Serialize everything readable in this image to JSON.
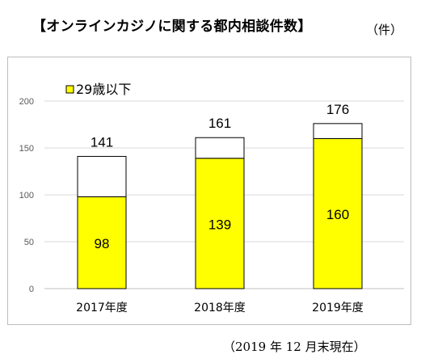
{
  "header": {
    "title": "【オンラインカジノに関する都内相談件数】",
    "unit": "（件）"
  },
  "footnote": "（2019 年 12 月末現在）",
  "colors": {
    "under29": "#ffff00",
    "other": "#ffffff",
    "grid": "#d9d9d9",
    "stroke": "#000000"
  },
  "chart_data": {
    "type": "bar",
    "stacked": true,
    "categories": [
      "2017年度",
      "2018年度",
      "2019年度"
    ],
    "series": [
      {
        "name": "29歳以下",
        "values": [
          98,
          139,
          160
        ]
      },
      {
        "name": "",
        "values": [
          43,
          22,
          16
        ]
      }
    ],
    "totals": [
      141,
      161,
      176
    ],
    "y_ticks": [
      0,
      50,
      100,
      150,
      200
    ],
    "ylim": [
      0,
      200
    ],
    "grid": true,
    "legend": "top-left"
  }
}
